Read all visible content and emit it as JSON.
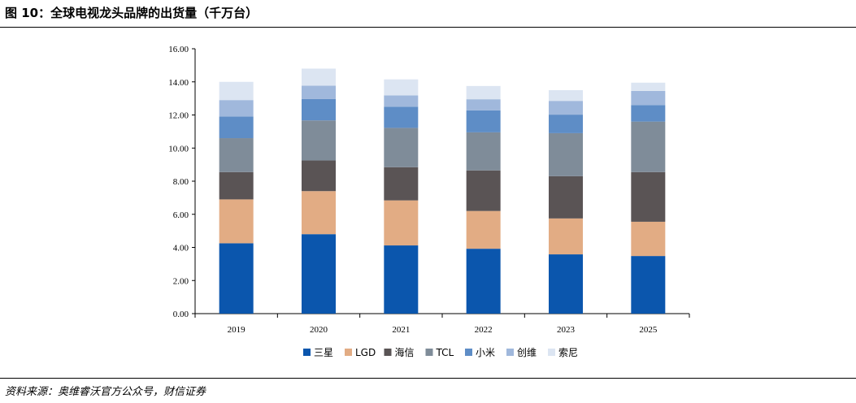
{
  "figure_title": "图 10：全球电视龙头品牌的出货量（千万台）",
  "source": "资料来源：奥维睿沃官方公众号，财信证券",
  "chart_data": {
    "type": "bar",
    "stacked": true,
    "categories": [
      "2019",
      "2020",
      "2021",
      "2022",
      "2023",
      "2025"
    ],
    "y_ticks": [
      "0.00",
      "2.00",
      "4.00",
      "6.00",
      "8.00",
      "10.00",
      "12.00",
      "14.00",
      "16.00"
    ],
    "ylim": [
      0,
      16
    ],
    "grid": false,
    "legend_position": "bottom",
    "series": [
      {
        "name": "三星",
        "color": "#0B56AD",
        "values": [
          4.25,
          4.8,
          4.12,
          3.92,
          3.58,
          3.48
        ]
      },
      {
        "name": "LGD",
        "color": "#E2AC84",
        "values": [
          2.65,
          2.6,
          2.72,
          2.28,
          2.17,
          2.07
        ]
      },
      {
        "name": "海信",
        "color": "#5A5455",
        "values": [
          1.65,
          1.85,
          2.0,
          2.45,
          2.55,
          3.0
        ]
      },
      {
        "name": "TCL",
        "color": "#7F8C99",
        "values": [
          2.05,
          2.42,
          2.38,
          2.3,
          2.6,
          3.05
        ]
      },
      {
        "name": "小米",
        "color": "#5E8DC6",
        "values": [
          1.3,
          1.3,
          1.28,
          1.33,
          1.12,
          1.0
        ]
      },
      {
        "name": "创维",
        "color": "#A0B8DC",
        "values": [
          1.0,
          0.8,
          0.68,
          0.67,
          0.83,
          0.85
        ]
      },
      {
        "name": "索尼",
        "color": "#DCE5F2",
        "values": [
          1.1,
          1.03,
          0.97,
          0.8,
          0.65,
          0.5
        ]
      }
    ]
  }
}
